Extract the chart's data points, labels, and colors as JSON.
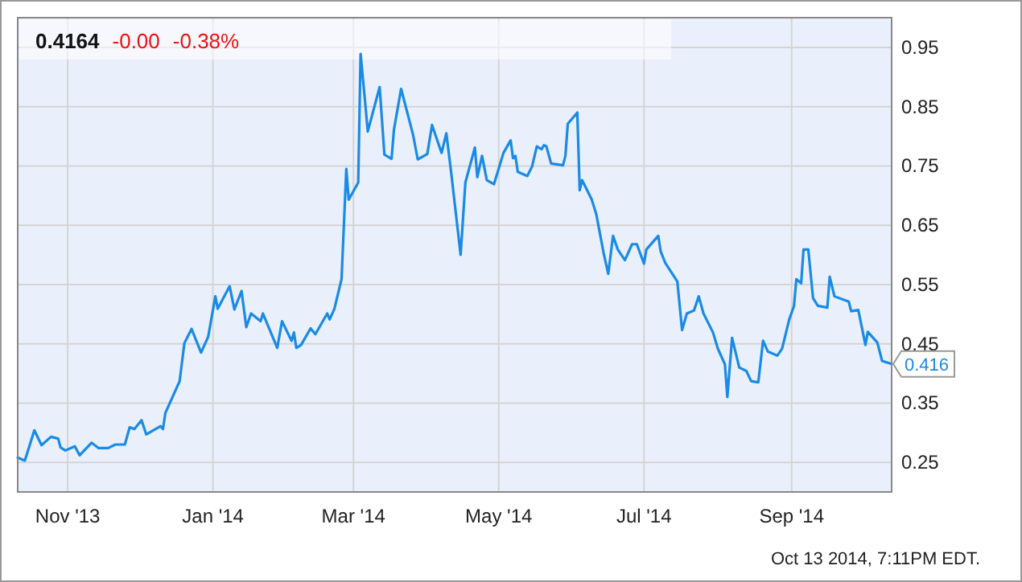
{
  "chart_data": {
    "type": "line",
    "title": "0.4164 -0.00 -0.38%",
    "x": [
      "2013-10-11",
      "2013-10-14",
      "2013-10-18",
      "2013-10-21",
      "2013-10-25",
      "2013-10-28",
      "2013-10-29",
      "2013-10-31",
      "2013-11-04",
      "2013-11-06",
      "2013-11-11",
      "2013-11-14",
      "2013-11-18",
      "2013-11-21",
      "2013-11-25",
      "2013-11-27",
      "2013-11-29",
      "2013-12-02",
      "2013-12-04",
      "2013-12-10",
      "2013-12-11",
      "2013-12-12",
      "2013-12-18",
      "2013-12-20",
      "2013-12-23",
      "2013-12-27",
      "2013-12-30",
      "2014-01-02",
      "2014-01-03",
      "2014-01-08",
      "2014-01-10",
      "2014-01-13",
      "2014-01-15",
      "2014-01-17",
      "2014-01-21",
      "2014-01-22",
      "2014-01-28",
      "2014-01-30",
      "2014-02-03",
      "2014-02-04",
      "2014-02-05",
      "2014-02-07",
      "2014-02-11",
      "2014-02-13",
      "2014-02-18",
      "2014-02-19",
      "2014-02-21",
      "2014-02-24",
      "2014-02-26",
      "2014-02-27",
      "2014-03-03",
      "2014-03-04",
      "2014-03-06",
      "2014-03-07",
      "2014-03-12",
      "2014-03-14",
      "2014-03-17",
      "2014-03-18",
      "2014-03-21",
      "2014-03-26",
      "2014-03-28",
      "2014-04-01",
      "2014-04-03",
      "2014-04-07",
      "2014-04-09",
      "2014-04-11",
      "2014-04-15",
      "2014-04-17",
      "2014-04-21",
      "2014-04-22",
      "2014-04-24",
      "2014-04-26",
      "2014-04-29",
      "2014-05-03",
      "2014-05-06",
      "2014-05-07",
      "2014-05-08",
      "2014-05-09",
      "2014-05-13",
      "2014-05-15",
      "2014-05-17",
      "2014-05-19",
      "2014-05-20",
      "2014-05-21",
      "2014-05-23",
      "2014-05-28",
      "2014-05-29",
      "2014-05-30",
      "2014-06-03",
      "2014-06-04",
      "2014-06-05",
      "2014-06-09",
      "2014-06-11",
      "2014-06-14",
      "2014-06-16",
      "2014-06-18",
      "2014-06-20",
      "2014-06-23",
      "2014-06-26",
      "2014-06-28",
      "2014-07-01",
      "2014-07-02",
      "2014-07-07",
      "2014-07-08",
      "2014-07-10",
      "2014-07-15",
      "2014-07-16",
      "2014-07-17",
      "2014-07-19",
      "2014-07-22",
      "2014-07-24",
      "2014-07-26",
      "2014-07-30",
      "2014-08-01",
      "2014-08-04",
      "2014-08-05",
      "2014-08-07",
      "2014-08-10",
      "2014-08-13",
      "2014-08-15",
      "2014-08-18",
      "2014-08-20",
      "2014-08-22",
      "2014-08-26",
      "2014-08-28",
      "2014-08-31",
      "2014-09-02",
      "2014-09-03",
      "2014-09-05",
      "2014-09-06",
      "2014-09-08",
      "2014-09-10",
      "2014-09-12",
      "2014-09-16",
      "2014-09-17",
      "2014-09-19",
      "2014-09-25",
      "2014-09-26",
      "2014-09-29",
      "2014-10-02",
      "2014-10-03",
      "2014-10-07",
      "2014-10-09",
      "2014-10-13"
    ],
    "series": [
      {
        "color": "#1a8ae6",
        "values": [
          0.258,
          0.253,
          0.304,
          0.279,
          0.293,
          0.29,
          0.275,
          0.27,
          0.277,
          0.262,
          0.283,
          0.274,
          0.274,
          0.28,
          0.28,
          0.309,
          0.306,
          0.321,
          0.297,
          0.311,
          0.306,
          0.333,
          0.387,
          0.451,
          0.475,
          0.435,
          0.462,
          0.53,
          0.509,
          0.547,
          0.508,
          0.539,
          0.478,
          0.501,
          0.488,
          0.501,
          0.443,
          0.488,
          0.455,
          0.469,
          0.443,
          0.448,
          0.476,
          0.466,
          0.501,
          0.491,
          0.509,
          0.559,
          0.745,
          0.693,
          0.722,
          0.939,
          0.853,
          0.808,
          0.883,
          0.769,
          0.762,
          0.811,
          0.88,
          0.803,
          0.761,
          0.77,
          0.819,
          0.772,
          0.805,
          0.74,
          0.6,
          0.722,
          0.781,
          0.731,
          0.767,
          0.726,
          0.719,
          0.772,
          0.793,
          0.763,
          0.767,
          0.74,
          0.733,
          0.749,
          0.783,
          0.778,
          0.785,
          0.783,
          0.754,
          0.751,
          0.767,
          0.821,
          0.84,
          0.709,
          0.726,
          0.694,
          0.668,
          0.604,
          0.568,
          0.632,
          0.609,
          0.591,
          0.618,
          0.618,
          0.585,
          0.609,
          0.632,
          0.606,
          0.586,
          0.555,
          0.514,
          0.473,
          0.501,
          0.506,
          0.53,
          0.501,
          0.469,
          0.442,
          0.415,
          0.36,
          0.46,
          0.41,
          0.404,
          0.387,
          0.385,
          0.455,
          0.437,
          0.43,
          0.442,
          0.491,
          0.514,
          0.559,
          0.552,
          0.609,
          0.609,
          0.527,
          0.514,
          0.511,
          0.563,
          0.53,
          0.521,
          0.505,
          0.507,
          0.448,
          0.47,
          0.452,
          0.421,
          0.416
        ]
      }
    ],
    "xlim": [
      "2013-10-11",
      "2014-10-13"
    ],
    "xticks": [
      {
        "value": "2013-11-01",
        "label": "Nov '13"
      },
      {
        "value": "2014-01-01",
        "label": "Jan '14"
      },
      {
        "value": "2014-03-01",
        "label": "Mar '14"
      },
      {
        "value": "2014-05-01",
        "label": "May '14"
      },
      {
        "value": "2014-07-01",
        "label": "Jul '14"
      },
      {
        "value": "2014-09-01",
        "label": "Sep '14"
      }
    ],
    "ylim": [
      0.2,
      1.0
    ],
    "yticks": [
      {
        "value": 0.25,
        "label": "0.25"
      },
      {
        "value": 0.35,
        "label": "0.35"
      },
      {
        "value": 0.45,
        "label": "0.45"
      },
      {
        "value": 0.55,
        "label": "0.55"
      },
      {
        "value": 0.65,
        "label": "0.65"
      },
      {
        "value": 0.75,
        "label": "0.75"
      },
      {
        "value": 0.85,
        "label": "0.85"
      },
      {
        "value": 0.95,
        "label": "0.95"
      }
    ],
    "grid": true,
    "marker": "none",
    "line_style": "solid",
    "annotations": [
      {
        "text": "0.416",
        "x": "2014-10-13",
        "y": 0.416
      },
      "Oct 13 2014, 7:11PM EDT."
    ]
  }
}
